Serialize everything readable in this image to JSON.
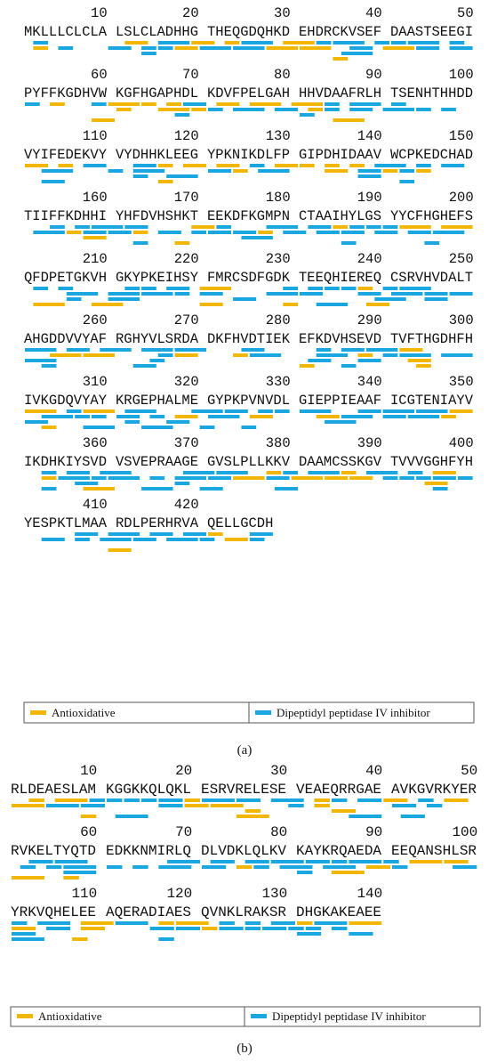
{
  "panel_a": {
    "rows": [
      {
        "numbers": [
          10,
          20,
          30,
          40,
          50
        ],
        "groups": [
          "MKLLLCLCLA",
          "LSLCLADHHG",
          "THEQGDQHKD",
          "EHDRCKVSEF",
          "DAASTSEEGI"
        ]
      },
      {
        "numbers": [
          60,
          70,
          80,
          90,
          100
        ],
        "groups": [
          "PYFFKGDHVW",
          "KGFHGAPHDL",
          "KDVFPELGAH",
          "HHVDAAFRLH",
          "TSENHTHHDD"
        ]
      },
      {
        "numbers": [
          110,
          120,
          130,
          140,
          150
        ],
        "groups": [
          "VYIFEDEKVY",
          "VYDHHKLEEG",
          "YPKNIKDLFP",
          "GIPDHIDAAV",
          "WCPKEDCHAD"
        ]
      },
      {
        "numbers": [
          160,
          170,
          180,
          190,
          200
        ],
        "groups": [
          "TIIFFKDHHI",
          "YHFDVHSHKT",
          "EEKDFKGMPN",
          "CTAAIHYLGS",
          "YYCFHGHEFS"
        ]
      },
      {
        "numbers": [
          210,
          220,
          230,
          240,
          250
        ],
        "groups": [
          "QFDPETGKVH",
          "GKYPKEIHSY",
          "FMRCSDFGDK",
          "TEEQHIEREQ",
          "CSRVHVDALT"
        ]
      },
      {
        "numbers": [
          260,
          270,
          280,
          290,
          300
        ],
        "groups": [
          "AHGDDVVYAF",
          "RGHYVLSRDA",
          "DKFHVDTIEK",
          "EFKDVHSEVD",
          "TVFTHGDHFH"
        ]
      },
      {
        "numbers": [
          310,
          320,
          330,
          340,
          350
        ],
        "groups": [
          "IVKGDQVYAY",
          "KRGEPHALME",
          "GYPKPVNVDL",
          "GIEPPIEAAF",
          "ICGTENIAYV"
        ]
      },
      {
        "numbers": [
          360,
          370,
          380,
          390,
          400
        ],
        "groups": [
          "IKDHKIYSVD",
          "VSVEPRAAGE",
          "GVSLPLLKKV",
          "DAAMCSSKGV",
          "TVVVGGHFYH"
        ]
      },
      {
        "numbers": [
          410,
          420
        ],
        "groups": [
          "YESPKTLMAA",
          "RDLPERHRVA",
          "QELLGCDH"
        ]
      }
    ],
    "legend": [
      "Antioxidative",
      "Dipeptidyl peptidase IV inhibitor"
    ],
    "label": "(a)"
  },
  "panel_b": {
    "rows": [
      {
        "numbers": [
          10,
          20,
          30,
          40,
          50
        ],
        "groups": [
          "RLDEAESLAM",
          "KGGKKQLQKL",
          "ESRVRELESE",
          "VEAEQRRGAE",
          "AVKGVRKYER"
        ]
      },
      {
        "numbers": [
          60,
          70,
          80,
          90,
          100
        ],
        "groups": [
          "RVKELTYQTD",
          "EDKKNMIRLQ",
          "DLVDKLQLKV",
          "KAYKRQAEDA",
          "EEQANSHLSR"
        ]
      },
      {
        "numbers": [
          110,
          120,
          130,
          140
        ],
        "groups": [
          "YRKVQHELEE",
          "AQERADIAES",
          "QVNKLRAKSR",
          "DHGKAKEAEE"
        ]
      }
    ],
    "legend": [
      "Antioxidative",
      "Dipeptidyl peptidase IV inhibitor"
    ],
    "label": "(b)"
  }
}
